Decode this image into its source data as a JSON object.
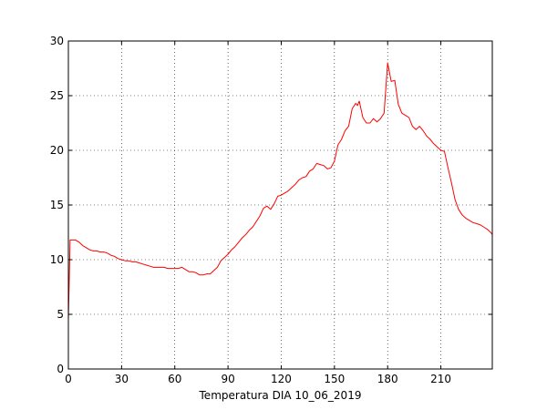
{
  "chart_data": {
    "type": "line",
    "xlabel": "Temperatura DIA 10_06_2019",
    "ylabel": "",
    "title": "",
    "xlim": [
      0,
      239
    ],
    "ylim": [
      0,
      30
    ],
    "xticks": [
      0,
      30,
      60,
      90,
      120,
      150,
      180,
      210
    ],
    "yticks": [
      0,
      5,
      10,
      15,
      20,
      25,
      30
    ],
    "grid": true,
    "line_color": "#ff0000",
    "series": [
      {
        "x": [
          0,
          1,
          2,
          4,
          6,
          8,
          10,
          12,
          14,
          16,
          18,
          20,
          22,
          24,
          26,
          28,
          30,
          32,
          34,
          36,
          38,
          40,
          42,
          44,
          46,
          48,
          50,
          52,
          54,
          56,
          58,
          60,
          62,
          64,
          66,
          68,
          70,
          72,
          74,
          76,
          78,
          80,
          82,
          84,
          86,
          88,
          90,
          92,
          94,
          96,
          98,
          100,
          102,
          104,
          106,
          108,
          110,
          112,
          114,
          116,
          118,
          120,
          122,
          124,
          126,
          128,
          130,
          132,
          134,
          136,
          138,
          140,
          142,
          144,
          146,
          148,
          150,
          152,
          154,
          156,
          158,
          160,
          162,
          163,
          164,
          166,
          168,
          170,
          172,
          174,
          176,
          178,
          180,
          182,
          184,
          186,
          188,
          190,
          192,
          194,
          196,
          198,
          200,
          202,
          204,
          206,
          208,
          210,
          212,
          214,
          216,
          218,
          220,
          222,
          224,
          226,
          228,
          230,
          232,
          234,
          236,
          238,
          239
        ],
        "y": [
          4.5,
          11.8,
          11.8,
          11.8,
          11.6,
          11.3,
          11.1,
          10.9,
          10.8,
          10.8,
          10.7,
          10.7,
          10.6,
          10.4,
          10.3,
          10.1,
          10.0,
          9.9,
          9.9,
          9.8,
          9.8,
          9.7,
          9.6,
          9.5,
          9.4,
          9.3,
          9.3,
          9.3,
          9.3,
          9.2,
          9.2,
          9.2,
          9.2,
          9.3,
          9.1,
          8.9,
          8.9,
          8.8,
          8.6,
          8.6,
          8.7,
          8.7,
          9.0,
          9.3,
          9.9,
          10.2,
          10.5,
          10.9,
          11.2,
          11.6,
          12.0,
          12.3,
          12.7,
          13.0,
          13.5,
          14.0,
          14.7,
          14.9,
          14.6,
          15.1,
          15.8,
          15.9,
          16.1,
          16.3,
          16.6,
          16.9,
          17.3,
          17.5,
          17.6,
          18.1,
          18.3,
          18.8,
          18.7,
          18.6,
          18.3,
          18.4,
          19.0,
          20.5,
          21.0,
          21.8,
          22.2,
          23.8,
          24.3,
          24.1,
          24.5,
          23.0,
          22.5,
          22.5,
          22.9,
          22.6,
          22.9,
          23.4,
          28.0,
          26.3,
          26.4,
          24.2,
          23.4,
          23.2,
          23.0,
          22.2,
          21.9,
          22.2,
          21.8,
          21.3,
          21.0,
          20.6,
          20.3,
          20.0,
          19.9,
          18.4,
          17.0,
          15.5,
          14.6,
          14.1,
          13.8,
          13.6,
          13.4,
          13.3,
          13.2,
          13.0,
          12.8,
          12.5,
          12.3
        ]
      }
    ]
  }
}
